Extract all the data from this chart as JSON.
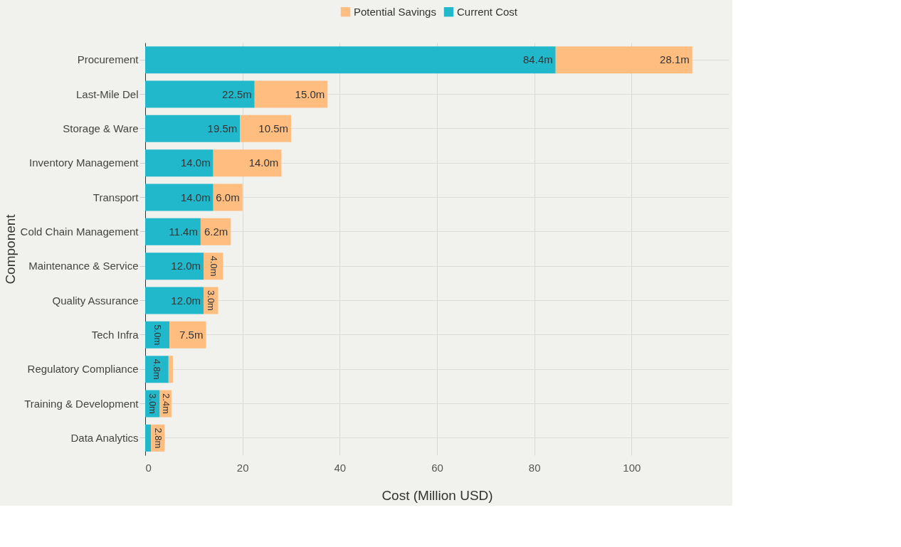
{
  "chart_data": {
    "type": "bar",
    "orientation": "horizontal",
    "stacked": true,
    "xlabel": "Cost (Million USD)",
    "ylabel": "Component",
    "categories": [
      "Procurement",
      "Last-Mile Del",
      "Storage & Ware",
      "Inventory Management",
      "Transport",
      "Cold Chain Management",
      "Maintenance & Service",
      "Quality Assurance",
      "Tech Infra",
      "Regulatory Compliance",
      "Training & Development",
      "Data Analytics"
    ],
    "series": [
      {
        "name": "Current Cost",
        "color": "#21b8cc",
        "values": [
          84.4,
          22.5,
          19.5,
          14.0,
          14.0,
          11.4,
          12.0,
          12.0,
          5.0,
          4.8,
          3.0,
          1.2
        ],
        "value_labels": [
          "84.4m",
          "22.5m",
          "19.5m",
          "14.0m",
          "14.0m",
          "11.4m",
          "12.0m",
          "12.0m",
          "5.0m",
          "4.8m",
          "3.0m",
          null
        ]
      },
      {
        "name": "Potential Savings",
        "color": "#ffbd80",
        "values": [
          28.1,
          15.0,
          10.5,
          14.0,
          6.0,
          6.2,
          4.0,
          3.0,
          7.5,
          0.9,
          2.4,
          2.8
        ],
        "value_labels": [
          "28.1m",
          "15.0m",
          "10.5m",
          "14.0m",
          "6.0m",
          "6.2m",
          "4.0m",
          "3.0m",
          "7.5m",
          null,
          "2.4m",
          "2.8m"
        ]
      }
    ],
    "xlim": [
      0,
      120
    ],
    "xticks": [
      0,
      20,
      40,
      60,
      80,
      100
    ],
    "grid": true,
    "legend": "top"
  }
}
